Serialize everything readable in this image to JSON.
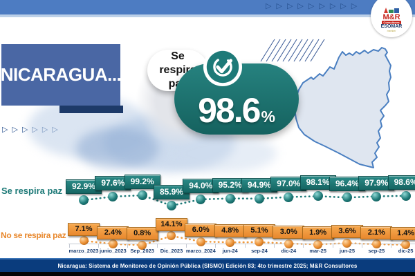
{
  "title": "NICARAGUA...",
  "header": {
    "top_triangle_count": 9,
    "left_triangle_count": 6
  },
  "logo": {
    "name": "M&R",
    "sub": "Consultores",
    "org": "ESOMAR",
    "member": "member"
  },
  "headline": {
    "label": "Se respira paz",
    "value": "98.6",
    "unit": "%"
  },
  "left_labels": {
    "teal": "Se respira paz",
    "orange": "No se respira paz"
  },
  "footer": {
    "text": "Nicaragua: Sistema de Monitoreo de Opinión Pública (SISMO) Edición 83; 4to trimestre 2025; M&R Consultores"
  },
  "colors": {
    "top_bar": "#4d7cc2",
    "top_bar_underline": "#bcd0e8",
    "title_box": "#4a67a4",
    "navy": "#1d3a69",
    "teal": "#1e7a78",
    "orange": "#ef9a3e",
    "footer_navy": "#0a3c7d",
    "map_fill": "#dfe6f0",
    "map_stroke": "#4a7fc1"
  },
  "chart_data": {
    "type": "line",
    "title": "Se respira paz 98.6%",
    "categories": [
      "marzo_2023",
      "junio_2023",
      "Sep_2023",
      "Dic_2023",
      "marzo_2024",
      "jun-24",
      "sep-24",
      "dic-24",
      "mar-25",
      "jun-25",
      "sep-25",
      "dic-25"
    ],
    "series": [
      {
        "name": "Se respira paz",
        "color": "#1e7a78",
        "values": [
          92.9,
          97.6,
          99.2,
          85.9,
          94.0,
          95.2,
          94.9,
          97.0,
          98.1,
          96.4,
          97.9,
          98.6
        ]
      },
      {
        "name": "No se respira paz",
        "color": "#ef9a3e",
        "values": [
          7.1,
          2.4,
          0.8,
          14.1,
          6.0,
          4.8,
          5.1,
          3.0,
          1.9,
          3.6,
          2.1,
          1.4
        ]
      }
    ],
    "value_labels": true,
    "ylim": [
      0,
      100
    ],
    "legend_position": "left",
    "grid": false,
    "highlight": {
      "series": "Se respira paz",
      "value": 98.6
    }
  }
}
